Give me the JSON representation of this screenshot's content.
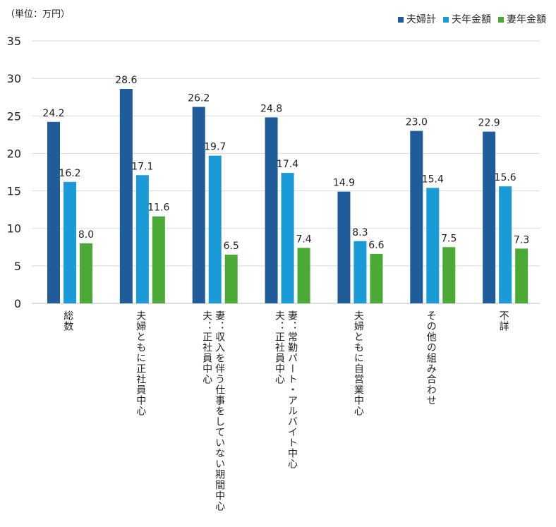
{
  "chart_data": {
    "type": "bar",
    "unit_label": "（単位：万円）",
    "categories": [
      "総数",
      "夫婦ともに正社員中心",
      "妻：収入を伴う仕事をしていない期間中心\n夫：正社員中心",
      "妻：常勤パート・アルバイト中心\n夫：正社員中心",
      "夫婦ともに自営業中心",
      "その他の組み合わせ",
      "不詳"
    ],
    "series": [
      {
        "name": "夫婦計",
        "color": "#1f5c99",
        "values": [
          24.2,
          28.6,
          26.2,
          24.8,
          14.9,
          23.0,
          22.9
        ]
      },
      {
        "name": "夫年金額",
        "color": "#1a9ad6",
        "values": [
          16.2,
          17.1,
          19.7,
          17.4,
          8.3,
          15.4,
          15.6
        ]
      },
      {
        "name": "妻年金額",
        "color": "#4aaa35",
        "values": [
          8.0,
          11.6,
          6.5,
          7.4,
          6.6,
          7.5,
          7.3
        ]
      }
    ],
    "ylim": [
      0,
      35
    ],
    "yticks": [
      0,
      5,
      10,
      15,
      20,
      25,
      30,
      35
    ],
    "grid": true,
    "legend": "top-right"
  }
}
